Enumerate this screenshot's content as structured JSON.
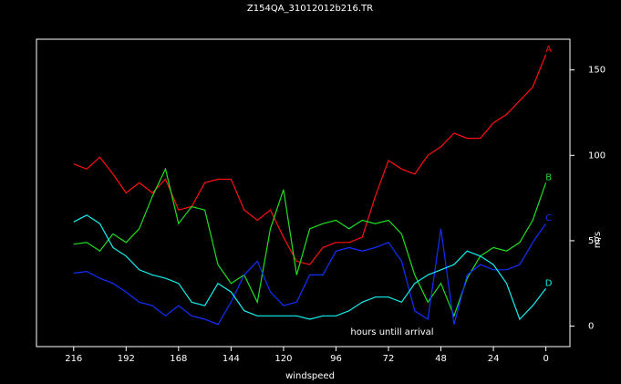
{
  "chart_data": {
    "type": "line",
    "title": "Z154QA_31012012b216.TR",
    "x_label": "windspeed",
    "y_label": "m/s",
    "annotation": "hours untill arrival",
    "x": [
      216,
      210,
      204,
      198,
      192,
      186,
      180,
      174,
      168,
      162,
      156,
      150,
      144,
      138,
      132,
      126,
      120,
      114,
      108,
      102,
      96,
      90,
      84,
      78,
      72,
      66,
      60,
      54,
      48,
      42,
      36,
      30,
      24,
      18,
      12,
      6,
      0
    ],
    "series": [
      {
        "name": "A",
        "color": "#ff1010",
        "values": [
          95,
          92,
          99,
          89,
          78,
          84,
          78,
          86,
          68,
          70,
          84,
          86,
          86,
          68,
          62,
          68,
          52,
          38,
          36,
          46,
          49,
          49,
          52,
          76,
          97,
          92,
          89,
          100,
          105,
          113,
          110,
          110,
          119,
          124,
          132,
          140,
          159
        ]
      },
      {
        "name": "B",
        "color": "#20e020",
        "values": [
          48,
          49,
          44,
          54,
          49,
          57,
          76,
          92,
          60,
          70,
          68,
          36,
          25,
          30,
          14,
          57,
          80,
          30,
          57,
          60,
          62,
          57,
          62,
          60,
          62,
          54,
          30,
          14,
          25,
          6,
          28,
          41,
          46,
          44,
          49,
          62,
          84
        ]
      },
      {
        "name": "C",
        "color": "#1030ff",
        "values": [
          31,
          32,
          28,
          25,
          20,
          14,
          12,
          6,
          12,
          6,
          4,
          1,
          14,
          30,
          38,
          20,
          12,
          14,
          30,
          30,
          44,
          46,
          44,
          46,
          49,
          38,
          9,
          4,
          57,
          1,
          30,
          36,
          33,
          33,
          36,
          49,
          60
        ]
      },
      {
        "name": "D",
        "color": "#10f0f0",
        "values": [
          61,
          65,
          60,
          46,
          41,
          33,
          30,
          28,
          25,
          14,
          12,
          25,
          20,
          9,
          6,
          6,
          6,
          6,
          4,
          6,
          6,
          9,
          14,
          17,
          17,
          14,
          25,
          30,
          33,
          36,
          44,
          41,
          36,
          25,
          4,
          12,
          22
        ]
      }
    ],
    "xlim": [
      233,
      -11
    ],
    "ylim": [
      -12,
      168
    ],
    "xticks": [
      216,
      192,
      168,
      144,
      120,
      96,
      72,
      48,
      24,
      0
    ],
    "yticks": [
      0,
      50,
      100,
      150
    ]
  }
}
